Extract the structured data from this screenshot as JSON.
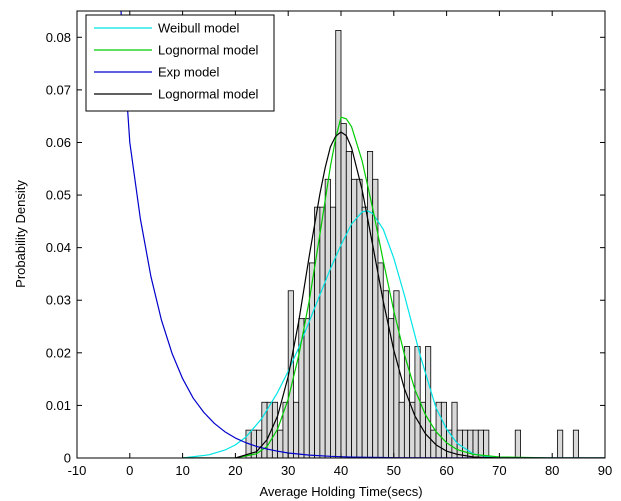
{
  "chart_data": {
    "type": "bar",
    "xlabel": "Average Holding Time(secs)",
    "ylabel": "Probability Density",
    "xlim": [
      -10,
      90
    ],
    "ylim": [
      0,
      0.085
    ],
    "xticks": [
      -10,
      0,
      10,
      20,
      30,
      40,
      50,
      60,
      70,
      80,
      90
    ],
    "yticks": [
      0,
      0.01,
      0.02,
      0.03,
      0.04,
      0.05,
      0.06,
      0.07,
      0.08
    ],
    "legend_position": "top-left",
    "histogram": {
      "bin_width": 1,
      "color": "#d9d9d9",
      "edge_color": "#000000",
      "bins": [
        [
          22,
          0.0053
        ],
        [
          23,
          0.0053
        ],
        [
          24,
          0.0053
        ],
        [
          25,
          0.0106
        ],
        [
          26,
          0.0106
        ],
        [
          27,
          0.0106
        ],
        [
          28,
          0.0053
        ],
        [
          29,
          0.0106
        ],
        [
          30,
          0.0318
        ],
        [
          31,
          0.0106
        ],
        [
          32,
          0.0265
        ],
        [
          33,
          0.0265
        ],
        [
          34,
          0.0371
        ],
        [
          35,
          0.0477
        ],
        [
          36,
          0.0477
        ],
        [
          37,
          0.053
        ],
        [
          38,
          0.0477
        ],
        [
          39,
          0.0813
        ],
        [
          40,
          0.0636
        ],
        [
          41,
          0.0583
        ],
        [
          42,
          0.053
        ],
        [
          43,
          0.053
        ],
        [
          44,
          0.0477
        ],
        [
          45,
          0.0583
        ],
        [
          46,
          0.053
        ],
        [
          47,
          0.0371
        ],
        [
          48,
          0.0318
        ],
        [
          49,
          0.0265
        ],
        [
          50,
          0.0318
        ],
        [
          51,
          0.0106
        ],
        [
          52,
          0.0212
        ],
        [
          53,
          0.0106
        ],
        [
          54,
          0.0212
        ],
        [
          55,
          0.0106
        ],
        [
          56,
          0.0212
        ],
        [
          57,
          0.0053
        ],
        [
          58,
          0.0106
        ],
        [
          59,
          0.0106
        ],
        [
          60,
          0.0053
        ],
        [
          61,
          0.0106
        ],
        [
          62,
          0.0053
        ],
        [
          63,
          0.0053
        ],
        [
          64,
          0.0053
        ],
        [
          65,
          0.0053
        ],
        [
          66,
          0.0053
        ],
        [
          67,
          0.0053
        ],
        [
          73,
          0.0053
        ],
        [
          81,
          0.0053
        ],
        [
          84,
          0.0053
        ]
      ]
    },
    "series": [
      {
        "name": "Weibull model",
        "color": "#00e5e5",
        "x": [
          10,
          15,
          18,
          20,
          22,
          25,
          28,
          30,
          32,
          35,
          38,
          40,
          42,
          44,
          45,
          46,
          48,
          50,
          52,
          55,
          58,
          60,
          62,
          65,
          68,
          70,
          75,
          80,
          90
        ],
        "y": [
          0.0,
          0.0006,
          0.0015,
          0.0025,
          0.004,
          0.0075,
          0.0125,
          0.0165,
          0.021,
          0.0285,
          0.036,
          0.0405,
          0.0445,
          0.0468,
          0.047,
          0.0465,
          0.0435,
          0.038,
          0.031,
          0.0195,
          0.0095,
          0.0055,
          0.0028,
          0.0008,
          0.0002,
          0.0,
          0.0,
          0.0,
          0.0
        ]
      },
      {
        "name": "Lognormal model",
        "color": "#00cc00",
        "x": [
          10,
          20,
          24,
          26,
          28,
          30,
          32,
          34,
          36,
          38,
          39,
          40,
          41,
          42,
          44,
          46,
          48,
          50,
          52,
          54,
          56,
          58,
          60,
          62,
          65,
          70,
          80,
          90
        ],
        "y": [
          0.0,
          0.0,
          0.0008,
          0.0022,
          0.0055,
          0.0112,
          0.0195,
          0.03,
          0.0425,
          0.0555,
          0.0608,
          0.0648,
          0.0645,
          0.063,
          0.0565,
          0.0475,
          0.0375,
          0.028,
          0.0197,
          0.013,
          0.0082,
          0.005,
          0.0029,
          0.0016,
          0.0007,
          0.0002,
          0.0,
          0.0
        ]
      },
      {
        "name": "Exp model",
        "color": "#0000cc",
        "x": [
          -2,
          0,
          2,
          4,
          6,
          8,
          10,
          12,
          14,
          16,
          18,
          20,
          22,
          24,
          26,
          28,
          30,
          34,
          38,
          42,
          50,
          60,
          70,
          80,
          90
        ],
        "y": [
          0.09,
          0.06,
          0.0455,
          0.0345,
          0.0262,
          0.0199,
          0.0151,
          0.0114,
          0.0087,
          0.0066,
          0.005,
          0.0038,
          0.0029,
          0.0022,
          0.0017,
          0.0013,
          0.00095,
          0.00055,
          0.00032,
          0.00018,
          6e-05,
          2e-05,
          0.0,
          0.0,
          0.0
        ]
      },
      {
        "name": "Lognormal model",
        "color": "#000000",
        "x": [
          10,
          20,
          24,
          26,
          28,
          30,
          32,
          34,
          36,
          37,
          38,
          39,
          40,
          41,
          42,
          44,
          46,
          48,
          50,
          52,
          54,
          56,
          58,
          60,
          62,
          65,
          70,
          80,
          90
        ],
        "y": [
          0.0,
          0.0,
          0.0012,
          0.0035,
          0.008,
          0.0155,
          0.026,
          0.0385,
          0.0502,
          0.0552,
          0.0592,
          0.0612,
          0.062,
          0.0613,
          0.059,
          0.051,
          0.0405,
          0.0298,
          0.0205,
          0.0132,
          0.008,
          0.0046,
          0.0025,
          0.0013,
          0.0007,
          0.0002,
          0.0,
          0.0,
          0.0
        ]
      }
    ]
  }
}
